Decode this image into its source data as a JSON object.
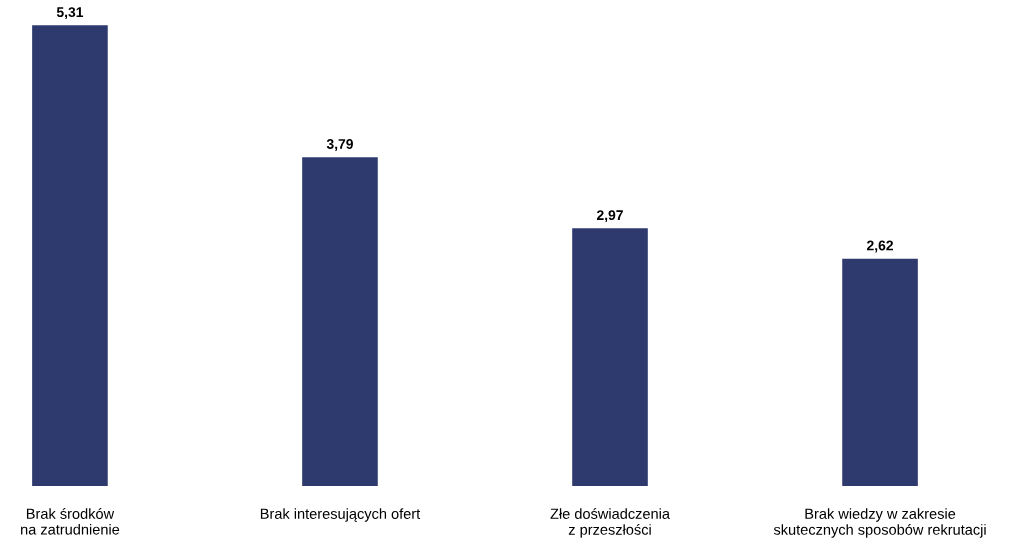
{
  "chart_data": {
    "type": "bar",
    "categories": [
      "Brak środków\nna zatrudnienie",
      "Brak interesujących ofert",
      "Złe doświadczenia\nz przeszłości",
      "Brak wiedzy w zakresie\nskutecznych sposobów rekrutacji"
    ],
    "values": [
      5.31,
      3.79,
      2.97,
      2.62
    ],
    "value_labels": [
      "5,31",
      "3,79",
      "2,97",
      "2,62"
    ],
    "color": "#2e3a6e",
    "grid": false,
    "legend": false
  }
}
